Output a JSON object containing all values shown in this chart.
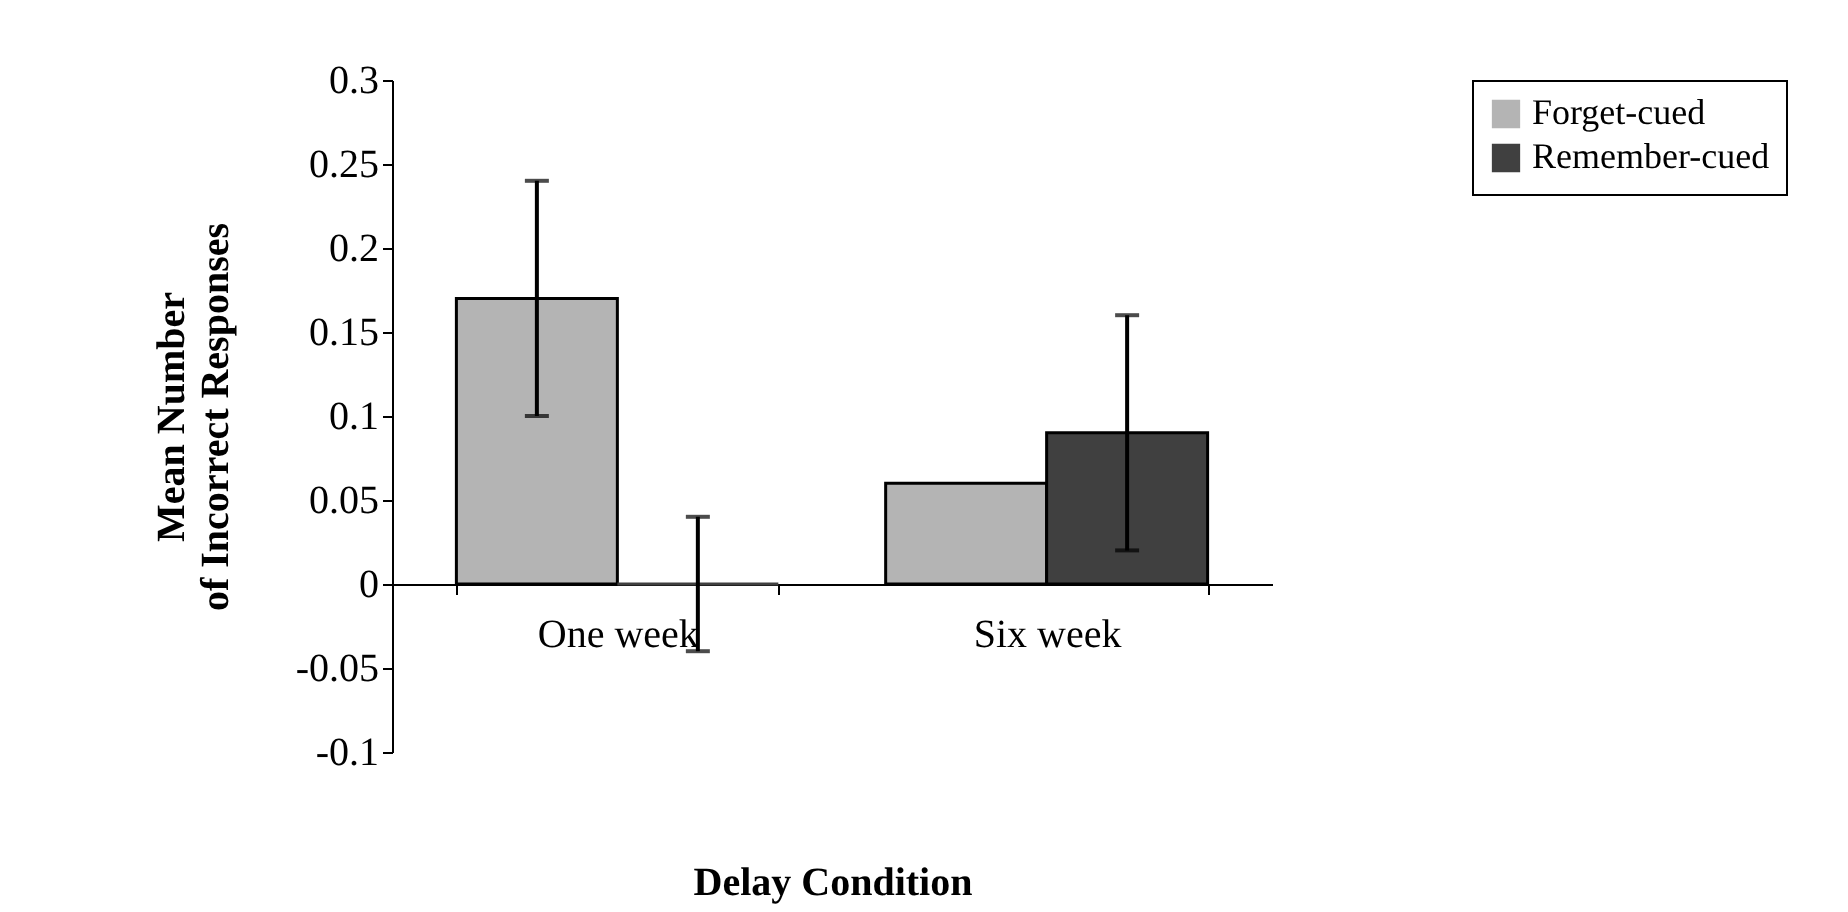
{
  "chart_data": {
    "type": "bar",
    "xlabel": "Delay Condition",
    "ylabel": "Mean Number of Incorrect Responses",
    "categories": [
      "One week",
      "Six week"
    ],
    "series": [
      {
        "name": "Forget-cued",
        "color": "#b4b4b4",
        "values": [
          0.17,
          0.06
        ],
        "errors": [
          0.07,
          null
        ]
      },
      {
        "name": "Remember-cued",
        "color": "#404040",
        "values": [
          0,
          0.09
        ],
        "errors": [
          0.04,
          0.07
        ]
      }
    ],
    "ylim": [
      -0.1,
      0.3
    ],
    "yticks": [
      -0.1,
      -0.05,
      0,
      0.05,
      0.1,
      0.15,
      0.2,
      0.25,
      0.3
    ],
    "grid": false,
    "legend": "right"
  }
}
